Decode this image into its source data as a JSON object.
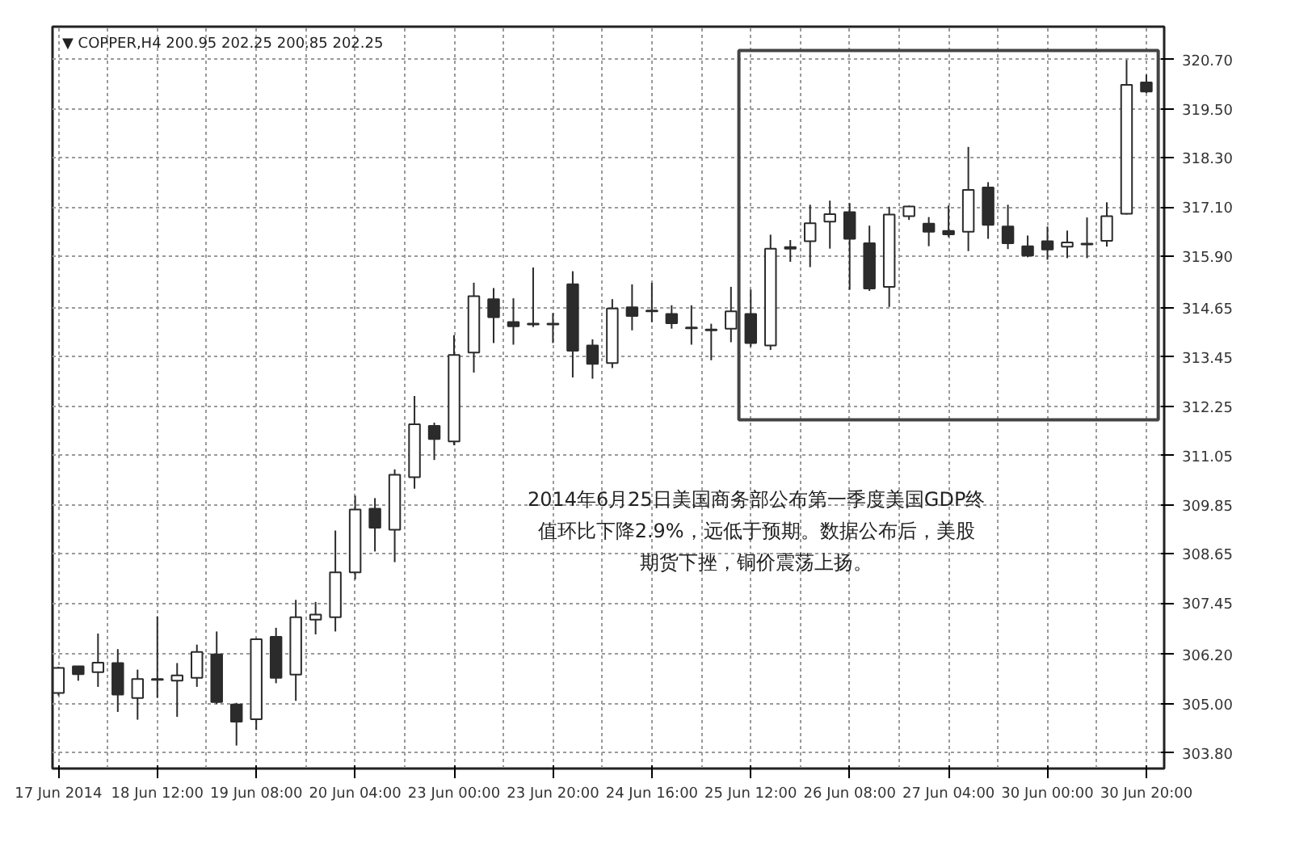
{
  "chart_data": {
    "type": "candlestick",
    "title": "▼ COPPER,H4  200.95 202.25 200.85 202.25",
    "categories": [
      "17 Jun 2014",
      null,
      null,
      null,
      null,
      "18 Jun 12:00",
      null,
      null,
      null,
      null,
      "19 Jun 08:00",
      null,
      null,
      null,
      null,
      "20 Jun 04:00",
      null,
      null,
      null,
      null,
      "23 Jun 00:00",
      null,
      null,
      null,
      null,
      "23 Jun 20:00",
      null,
      null,
      null,
      null,
      "24 Jun 16:00",
      null,
      null,
      null,
      null,
      "25 Jun 12:00",
      null,
      null,
      null,
      null,
      "26 Jun 08:00",
      null,
      null,
      null,
      null,
      "27 Jun 04:00",
      null,
      null,
      null,
      null,
      "30 Jun 00:00",
      null,
      null,
      null,
      null,
      "30 Jun 20:00"
    ],
    "ohlc": [
      [
        305.26,
        305.9,
        305.2,
        305.87
      ],
      [
        305.91,
        305.91,
        305.56,
        305.72
      ],
      [
        305.77,
        306.71,
        305.41,
        306.0
      ],
      [
        305.99,
        306.33,
        304.8,
        305.22
      ],
      [
        305.14,
        305.83,
        304.61,
        305.6
      ],
      [
        305.6,
        307.13,
        305.14,
        305.58
      ],
      [
        305.56,
        305.99,
        304.68,
        305.69
      ],
      [
        305.63,
        306.44,
        305.41,
        306.26
      ],
      [
        306.2,
        306.76,
        304.99,
        305.04
      ],
      [
        304.98,
        305.02,
        303.98,
        304.56
      ],
      [
        304.62,
        306.6,
        304.36,
        306.57
      ],
      [
        306.63,
        306.85,
        305.5,
        305.63
      ],
      [
        305.71,
        307.53,
        305.07,
        307.11
      ],
      [
        307.05,
        307.48,
        306.69,
        307.17
      ],
      [
        307.11,
        309.22,
        306.76,
        308.2
      ],
      [
        308.2,
        310.07,
        308.03,
        309.73
      ],
      [
        309.75,
        310.01,
        308.71,
        309.29
      ],
      [
        309.24,
        310.71,
        308.45,
        310.58
      ],
      [
        310.52,
        312.5,
        310.24,
        311.81
      ],
      [
        311.77,
        311.85,
        310.94,
        311.45
      ],
      [
        311.39,
        313.98,
        311.3,
        313.5
      ],
      [
        313.56,
        315.26,
        313.07,
        314.93
      ],
      [
        314.86,
        315.13,
        313.79,
        314.42
      ],
      [
        314.3,
        314.88,
        313.75,
        314.2
      ],
      [
        314.26,
        315.63,
        314.18,
        314.24
      ],
      [
        314.24,
        314.52,
        313.79,
        314.26
      ],
      [
        315.22,
        315.54,
        312.95,
        313.6
      ],
      [
        313.73,
        313.88,
        312.92,
        313.28
      ],
      [
        313.3,
        314.86,
        313.18,
        314.63
      ],
      [
        314.66,
        315.22,
        314.1,
        314.45
      ],
      [
        314.58,
        315.26,
        314.3,
        314.56
      ],
      [
        314.5,
        314.71,
        314.14,
        314.27
      ],
      [
        314.17,
        314.71,
        313.75,
        314.15
      ],
      [
        314.12,
        314.26,
        313.37,
        314.1
      ],
      [
        314.14,
        315.16,
        313.81,
        314.56
      ],
      [
        314.5,
        315.09,
        313.7,
        313.79
      ],
      [
        313.73,
        316.43,
        313.62,
        316.09
      ],
      [
        316.09,
        316.3,
        315.77,
        316.13
      ],
      [
        316.27,
        317.16,
        315.64,
        316.71
      ],
      [
        316.75,
        317.26,
        316.09,
        316.93
      ],
      [
        316.98,
        317.2,
        315.09,
        316.33
      ],
      [
        316.22,
        316.65,
        315.06,
        315.12
      ],
      [
        315.16,
        317.11,
        314.67,
        316.92
      ],
      [
        316.88,
        317.14,
        316.79,
        317.12
      ],
      [
        316.7,
        316.86,
        316.15,
        316.5
      ],
      [
        316.52,
        317.14,
        316.37,
        316.44
      ],
      [
        316.5,
        318.57,
        316.03,
        317.52
      ],
      [
        317.58,
        317.71,
        316.33,
        316.67
      ],
      [
        316.63,
        317.16,
        316.08,
        316.22
      ],
      [
        316.15,
        316.41,
        315.88,
        315.92
      ],
      [
        316.27,
        316.63,
        315.82,
        316.07
      ],
      [
        316.14,
        316.53,
        315.86,
        316.24
      ],
      [
        316.19,
        316.85,
        315.86,
        316.21
      ],
      [
        316.28,
        317.22,
        316.14,
        316.88
      ],
      [
        316.94,
        320.69,
        316.92,
        320.08
      ],
      [
        320.14,
        320.33,
        319.88,
        319.92
      ]
    ],
    "color": "#2b2b2b",
    "ylim": [
      303.42,
      321.5
    ],
    "yticks": [
      {
        "value": 303.8,
        "label": "303.80"
      },
      {
        "value": 305.0,
        "label": "305.00"
      },
      {
        "value": 306.2,
        "label": "306.20"
      },
      {
        "value": 307.45,
        "label": "307.45"
      },
      {
        "value": 308.65,
        "label": "308.65"
      },
      {
        "value": 309.85,
        "label": "309.85"
      },
      {
        "value": 311.05,
        "label": "311.05"
      },
      {
        "value": 312.25,
        "label": "312.25"
      },
      {
        "value": 313.45,
        "label": "313.45"
      },
      {
        "value": 314.65,
        "label": "314.65"
      },
      {
        "value": 315.9,
        "label": "315.90"
      },
      {
        "value": 317.1,
        "label": "317.10"
      },
      {
        "value": 318.3,
        "label": "318.30"
      },
      {
        "value": 319.5,
        "label": "319.50"
      },
      {
        "value": 320.7,
        "label": "320.70"
      }
    ],
    "grid": true,
    "annotations": [
      "2014年6月25日美国商务部公布第一季度美国GDP终值环比下降2.9%，远低于预期。数据公布后，美股期货下挫，铜价震荡上扬。"
    ]
  }
}
